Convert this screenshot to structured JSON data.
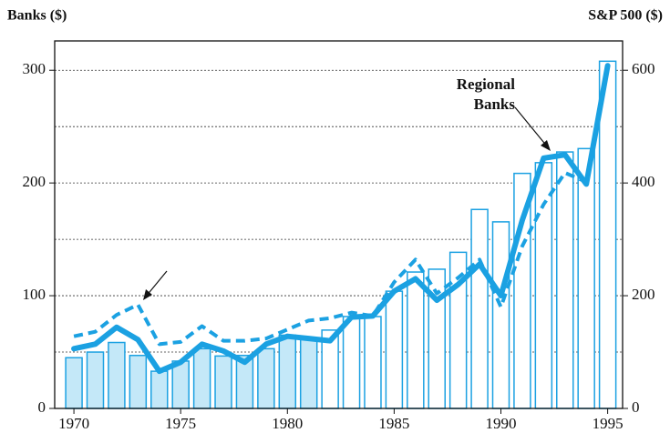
{
  "chart_data": {
    "type": "bar-line",
    "y_label": "Banks ($)",
    "y2_label": "S&P 500 ($)",
    "x": [
      1970,
      1971,
      1972,
      1973,
      1974,
      1975,
      1976,
      1977,
      1978,
      1979,
      1980,
      1981,
      1982,
      1983,
      1984,
      1985,
      1986,
      1987,
      1988,
      1989,
      1990,
      1991,
      1992,
      1993,
      1994,
      1995
    ],
    "xlim": [
      1969.1,
      1995.7
    ],
    "xticks": [
      1970,
      1975,
      1980,
      1985,
      1990,
      1995
    ],
    "ylim": [
      0,
      326
    ],
    "yticks": [
      0,
      100,
      200,
      300
    ],
    "ygrid": [
      50,
      100,
      150,
      200,
      250,
      300
    ],
    "y2lim": [
      0,
      652
    ],
    "y2ticks": [
      0,
      200,
      400,
      600
    ],
    "bars": {
      "axis": "y2",
      "color": "#1ba1e2",
      "fills": [
        "#c4e8f8",
        "#c4e8f8",
        "#c4e8f8",
        "#c4e8f8",
        "#c4e8f8",
        "#c4e8f8",
        "#c4e8f8",
        "#c4e8f8",
        "#c4e8f8",
        "#c4e8f8",
        "#c4e8f8",
        "#c4e8f8",
        "#ffffff",
        "#ffffff",
        "#ffffff",
        "#ffffff",
        "#ffffff",
        "#ffffff",
        "#ffffff",
        "#ffffff",
        "#ffffff",
        "#ffffff",
        "#ffffff",
        "#ffffff",
        "#ffffff",
        "#ffffff"
      ],
      "values": [
        90,
        100,
        117,
        94,
        66,
        84,
        106,
        93,
        94,
        106,
        130,
        123,
        139,
        163,
        163,
        208,
        242,
        247,
        277,
        353,
        331,
        417,
        436,
        455,
        461,
        616
      ]
    },
    "series": [
      {
        "name": "Regional Banks",
        "color": "#1ba1e2",
        "dash": false,
        "values": [
          53,
          57,
          72,
          61,
          33,
          41,
          57,
          51,
          41,
          57,
          64,
          62,
          60,
          81,
          82,
          104,
          115,
          96,
          110,
          128,
          100,
          167,
          222,
          225,
          199,
          304
        ]
      },
      {
        "color": "#1ba1e2",
        "dash": true,
        "values": [
          64,
          68,
          83,
          92,
          57,
          59,
          73,
          60,
          60,
          62,
          70,
          78,
          80,
          85,
          82,
          112,
          132,
          102,
          116,
          132,
          90,
          144,
          181,
          209,
          201,
          304
        ]
      }
    ]
  }
}
